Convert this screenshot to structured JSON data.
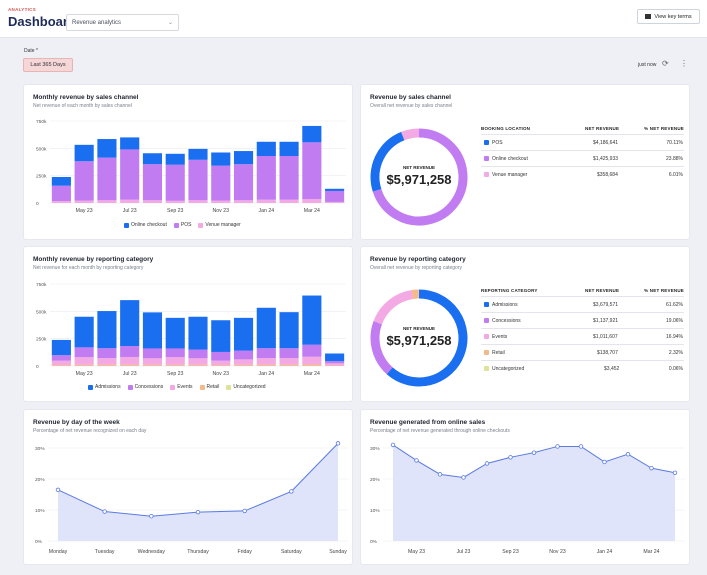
{
  "header": {
    "eyebrow": "ANALYTICS",
    "title": "Dashboard:",
    "select_value": "Revenue analytics",
    "view_key_terms": "View key terms"
  },
  "filters": {
    "date_label": "Date *",
    "date_value": "Last 365 Days",
    "updated": "just now"
  },
  "colors": {
    "blue": "#1a6ef0",
    "purple": "#c17cf2",
    "pink": "#f3a9e3",
    "orange": "#f5b98a",
    "yellow": "#dfe39a",
    "area": "#dfe4fb",
    "line": "#5a7be0"
  },
  "cards": {
    "monthly_channel": {
      "title": "Monthly revenue by sales channel",
      "subtitle": "Net revenue of each month by sales channel",
      "legend": [
        "Online checkout",
        "POS",
        "Venue manager"
      ]
    },
    "channel_donut": {
      "title": "Revenue by sales channel",
      "subtitle": "Overall net revenue by sales channel",
      "net_label": "NET REVENUE",
      "net_value": "$5,971,258",
      "headers": [
        "BOOKING LOCATION",
        "NET REVENUE",
        "% NET REVENUE"
      ],
      "rows": [
        {
          "name": "POS",
          "value": "$4,186,641",
          "pct": "70.11%"
        },
        {
          "name": "Online checkout",
          "value": "$1,425,933",
          "pct": "23.88%"
        },
        {
          "name": "Venue manager",
          "value": "$358,684",
          "pct": "6.01%"
        }
      ]
    },
    "monthly_category": {
      "title": "Monthly revenue by reporting category",
      "subtitle": "Net revenue for each month by reporting category",
      "legend": [
        "Admissions",
        "Concessions",
        "Events",
        "Retail",
        "Uncategorized"
      ]
    },
    "category_donut": {
      "title": "Revenue by reporting category",
      "subtitle": "Overall net revenue by reporting category",
      "net_label": "NET REVENUE",
      "net_value": "$5,971,258",
      "headers": [
        "REPORTING CATEGORY",
        "NET REVENUE",
        "% NET REVENUE"
      ],
      "rows": [
        {
          "name": "Admissions",
          "value": "$3,679,571",
          "pct": "61.62%"
        },
        {
          "name": "Concessions",
          "value": "$1,137,921",
          "pct": "19.06%"
        },
        {
          "name": "Events",
          "value": "$1,011,607",
          "pct": "16.94%"
        },
        {
          "name": "Retail",
          "value": "$138,707",
          "pct": "2.32%"
        },
        {
          "name": "Uncategorized",
          "value": "$3,452",
          "pct": "0.06%"
        }
      ]
    },
    "day_of_week": {
      "title": "Revenue by day of the week",
      "subtitle": "Percentage of net revenue recognized on each day"
    },
    "online_sales": {
      "title": "Revenue generated from online sales",
      "subtitle": "Percentage of net revenue generated through online checkouts"
    }
  },
  "chart_data": [
    {
      "type": "bar",
      "stacked": true,
      "title": "Monthly revenue by sales channel",
      "categories": [
        "Apr 23",
        "May 23",
        "Jun 23",
        "Jul 23",
        "Aug 23",
        "Sep 23",
        "Oct 23",
        "Nov 23",
        "Dec 23",
        "Jan 24",
        "Feb 24",
        "Mar 24",
        "Apr 24"
      ],
      "tick_labels": [
        "May 23",
        "Jul 23",
        "Sep 23",
        "Nov 23",
        "Jan 24",
        "Mar 24"
      ],
      "ylim": [
        0,
        750000
      ],
      "yticks": [
        "0",
        "250k",
        "500k",
        "750k"
      ],
      "series": [
        {
          "name": "Venue manager",
          "values": [
            18000,
            22000,
            25000,
            30000,
            25000,
            20000,
            25000,
            22000,
            25000,
            30000,
            30000,
            35000,
            10000
          ]
        },
        {
          "name": "POS",
          "values": [
            140000,
            360000,
            390000,
            460000,
            330000,
            330000,
            370000,
            320000,
            330000,
            400000,
            400000,
            520000,
            100000
          ]
        },
        {
          "name": "Online checkout",
          "values": [
            80000,
            150000,
            170000,
            110000,
            100000,
            100000,
            100000,
            120000,
            120000,
            130000,
            130000,
            150000,
            20000
          ]
        }
      ]
    },
    {
      "type": "pie",
      "title": "Revenue by sales channel",
      "categories": [
        "POS",
        "Online checkout",
        "Venue manager"
      ],
      "values": [
        4186641,
        1425933,
        358684
      ]
    },
    {
      "type": "bar",
      "stacked": true,
      "title": "Monthly revenue by reporting category",
      "categories": [
        "Apr 23",
        "May 23",
        "Jun 23",
        "Jul 23",
        "Aug 23",
        "Sep 23",
        "Oct 23",
        "Nov 23",
        "Dec 23",
        "Jan 24",
        "Feb 24",
        "Mar 24",
        "Apr 24"
      ],
      "tick_labels": [
        "May 23",
        "Jul 23",
        "Sep 23",
        "Nov 23",
        "Jan 24",
        "Mar 24"
      ],
      "ylim": [
        0,
        750000
      ],
      "yticks": [
        "0",
        "250k",
        "500k",
        "750k"
      ],
      "series": [
        {
          "name": "Uncategorized",
          "values": [
            500,
            500,
            500,
            500,
            500,
            500,
            500,
            500,
            500,
            500,
            500,
            500,
            200
          ]
        },
        {
          "name": "Retail",
          "values": [
            8000,
            10000,
            12000,
            12000,
            10000,
            10000,
            10000,
            8000,
            10000,
            12000,
            12000,
            14000,
            4000
          ]
        },
        {
          "name": "Events",
          "values": [
            40000,
            70000,
            60000,
            70000,
            60000,
            70000,
            60000,
            40000,
            50000,
            60000,
            60000,
            70000,
            20000
          ]
        },
        {
          "name": "Concessions",
          "values": [
            50000,
            90000,
            90000,
            100000,
            90000,
            80000,
            80000,
            80000,
            80000,
            90000,
            90000,
            110000,
            20000
          ]
        },
        {
          "name": "Admissions",
          "values": [
            140000,
            280000,
            340000,
            420000,
            330000,
            280000,
            300000,
            290000,
            300000,
            370000,
            330000,
            450000,
            70000
          ]
        }
      ]
    },
    {
      "type": "pie",
      "title": "Revenue by reporting category",
      "categories": [
        "Admissions",
        "Concessions",
        "Events",
        "Retail",
        "Uncategorized"
      ],
      "values": [
        3679571,
        1137921,
        1011607,
        138707,
        3452
      ]
    },
    {
      "type": "area",
      "title": "Revenue by day of the week",
      "categories": [
        "Monday",
        "Tuesday",
        "Wednesday",
        "Thursday",
        "Friday",
        "Saturday",
        "Sunday"
      ],
      "values": [
        16.5,
        9.5,
        8,
        9.3,
        9.7,
        16,
        31.5
      ],
      "ylim": [
        0,
        30
      ],
      "yticks": [
        "0%",
        "10%",
        "20%",
        "30%"
      ]
    },
    {
      "type": "area",
      "title": "Revenue generated from online sales",
      "categories": [
        "Apr 23",
        "May 23",
        "Jun 23",
        "Jul 23",
        "Aug 23",
        "Sep 23",
        "Oct 23",
        "Nov 23",
        "Dec 23",
        "Jan 24",
        "Feb 24",
        "Mar 24",
        "Apr 24"
      ],
      "tick_labels": [
        "May 23",
        "Jul 23",
        "Sep 23",
        "Nov 23",
        "Jan 24",
        "Mar 24"
      ],
      "values": [
        31,
        26,
        21.5,
        20.5,
        25,
        27,
        28.5,
        30.5,
        30.5,
        25.5,
        28,
        23.5,
        22
      ],
      "ylim": [
        0,
        30
      ],
      "yticks": [
        "0%",
        "10%",
        "20%",
        "30%"
      ]
    }
  ]
}
